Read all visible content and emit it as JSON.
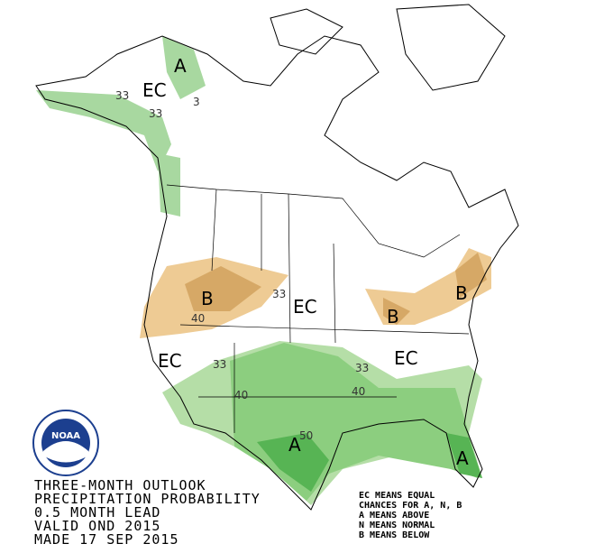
{
  "map": {
    "region_labels": [
      "EC",
      "A",
      "B",
      "EC",
      "B",
      "B",
      "EC",
      "EC",
      "A",
      "A"
    ],
    "contour_labels": [
      33,
      33,
      3,
      40,
      33,
      33,
      40,
      33,
      40,
      50
    ]
  },
  "caption": {
    "lines": [
      "THREE-MONTH OUTLOOK",
      "PRECIPITATION PROBABILITY",
      "0.5 MONTH LEAD",
      "VALID OND 2015",
      "MADE 17 SEP 2015"
    ]
  },
  "legend": {
    "lines": [
      "EC MEANS EQUAL",
      "CHANCES FOR A, N, B",
      "A MEANS ABOVE",
      "N MEANS NORMAL",
      "B MEANS BELOW"
    ]
  },
  "logo": {
    "text": "NOAA"
  }
}
